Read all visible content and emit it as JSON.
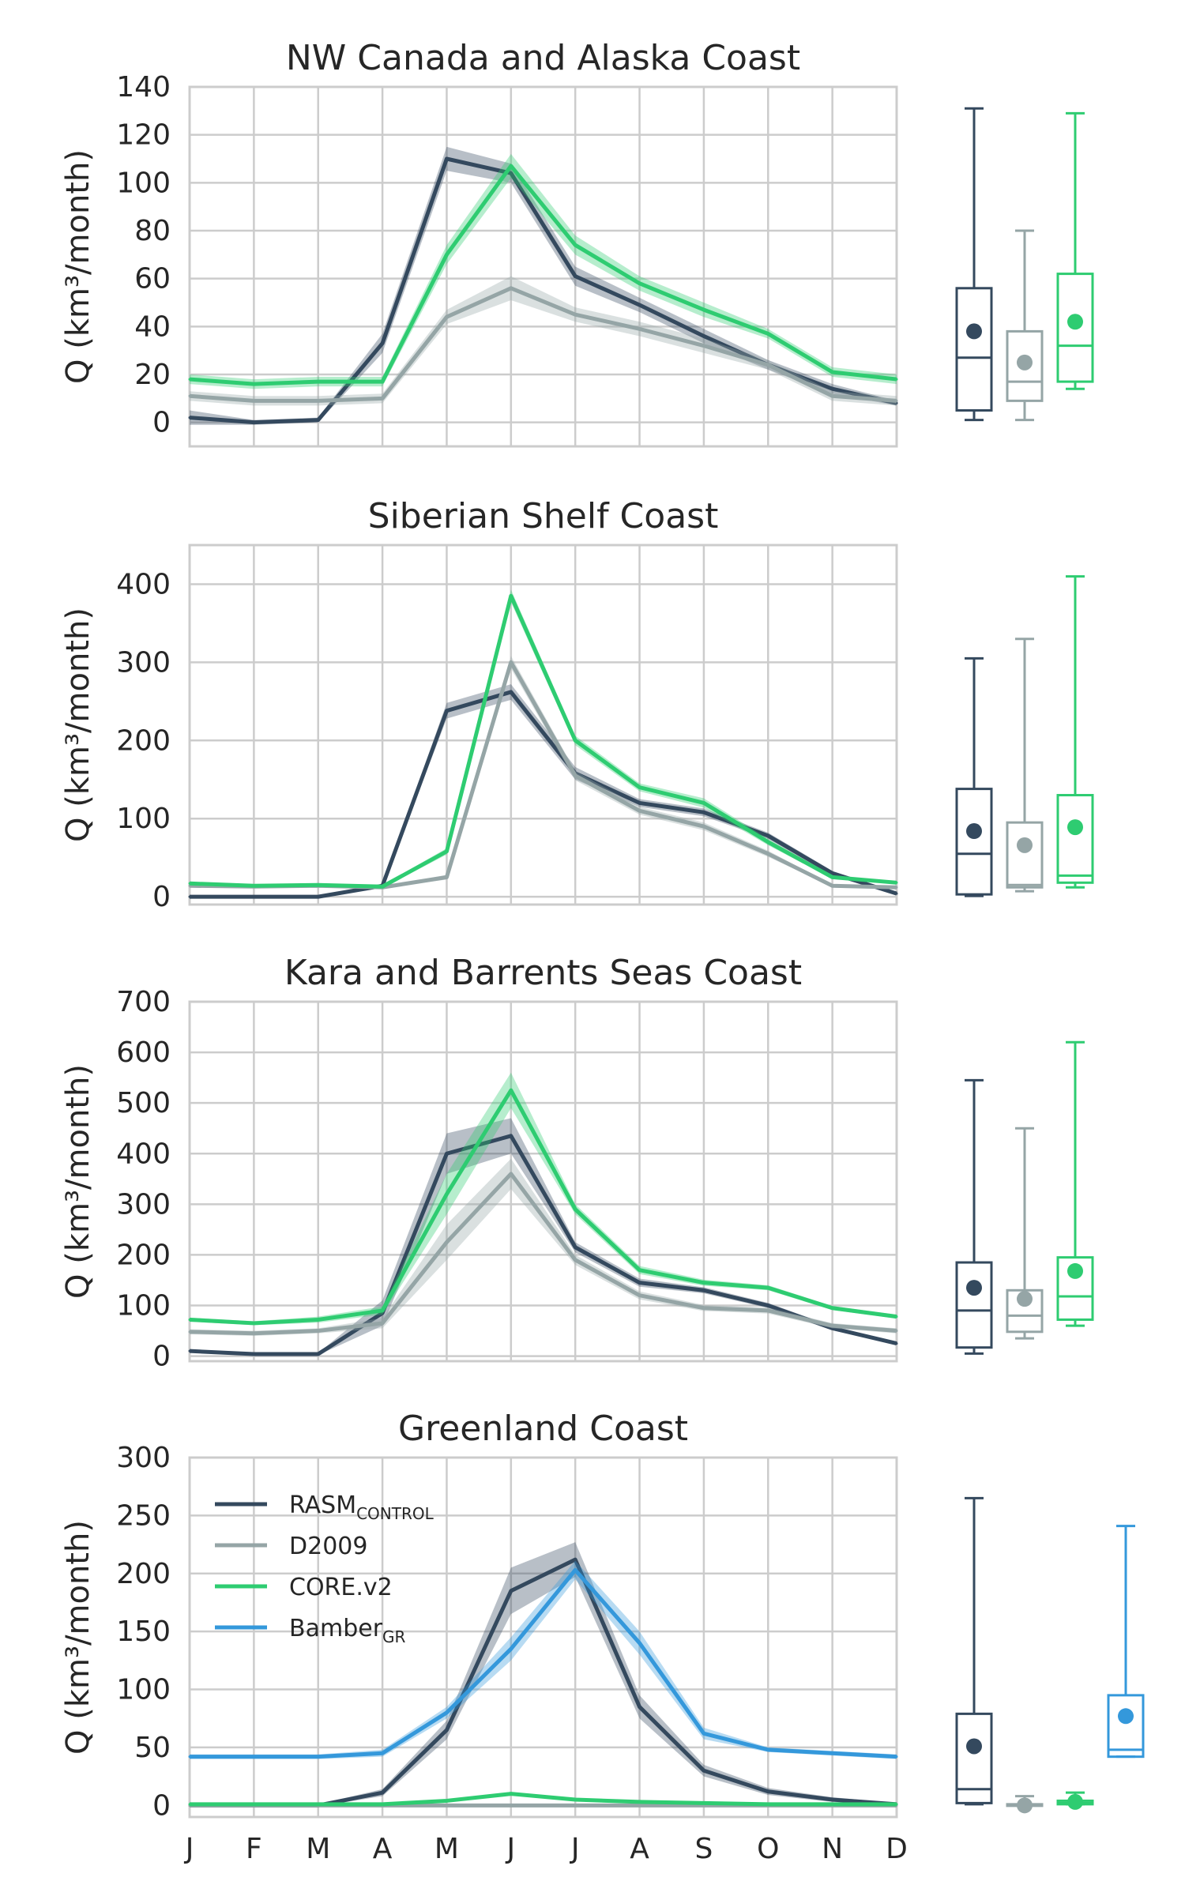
{
  "months": [
    "J",
    "F",
    "M",
    "A",
    "M",
    "J",
    "J",
    "A",
    "S",
    "O",
    "N",
    "D"
  ],
  "ylabel": "Q (km³/month)",
  "legend": [
    {
      "label": "RASM",
      "sub": "CONTROL",
      "color": "#34495e"
    },
    {
      "label": "D2009",
      "sub": "",
      "color": "#95a5a6"
    },
    {
      "label": "CORE.v2",
      "sub": "",
      "color": "#2ecc71"
    },
    {
      "label": "Bamber",
      "sub": "GR",
      "color": "#3498db"
    }
  ],
  "colors": {
    "RASM": "#34495e",
    "D2009": "#95a5a6",
    "CORE": "#2ecc71",
    "Bamber": "#3498db"
  },
  "chart_data": [
    {
      "type": "line",
      "title": "NW Canada and Alaska Coast",
      "ylim": [
        -10,
        140
      ],
      "yticks": [
        0,
        20,
        40,
        60,
        80,
        100,
        120,
        140
      ],
      "categories": [
        "J",
        "F",
        "M",
        "A",
        "M",
        "J",
        "J",
        "A",
        "S",
        "O",
        "N",
        "D"
      ],
      "series": [
        {
          "name": "RASM_CONTROL",
          "color": "#34495e",
          "values": [
            2,
            0,
            1,
            33,
            110,
            104,
            61,
            49,
            36,
            24,
            14,
            8
          ],
          "band": [
            3,
            1,
            1,
            4,
            5,
            4,
            4,
            3,
            3,
            2,
            2,
            1
          ]
        },
        {
          "name": "D2009",
          "color": "#95a5a6",
          "values": [
            11,
            9,
            9,
            10,
            44,
            56,
            45,
            39,
            32,
            24,
            11,
            9
          ],
          "band": [
            2,
            2,
            2,
            2,
            3,
            5,
            3,
            3,
            3,
            2,
            2,
            2
          ]
        },
        {
          "name": "CORE.v2",
          "color": "#2ecc71",
          "values": [
            18,
            16,
            17,
            17,
            70,
            107,
            74,
            58,
            47,
            37,
            21,
            18
          ],
          "band": [
            2,
            2,
            2,
            2,
            4,
            5,
            4,
            3,
            3,
            2,
            2,
            2
          ]
        }
      ],
      "boxes": [
        {
          "name": "RASM_CONTROL",
          "color": "#34495e",
          "min": 1,
          "q1": 5,
          "median": 27,
          "q3": 56,
          "max": 131,
          "mean": 38
        },
        {
          "name": "D2009",
          "color": "#95a5a6",
          "min": 1,
          "q1": 9,
          "median": 17,
          "q3": 38,
          "max": 80,
          "mean": 25
        },
        {
          "name": "CORE.v2",
          "color": "#2ecc71",
          "min": 14,
          "q1": 17,
          "median": 32,
          "q3": 62,
          "max": 129,
          "mean": 42
        }
      ]
    },
    {
      "type": "line",
      "title": "Siberian Shelf Coast",
      "ylim": [
        -10,
        450
      ],
      "yticks": [
        0,
        100,
        200,
        300,
        400
      ],
      "categories": [
        "J",
        "F",
        "M",
        "A",
        "M",
        "J",
        "J",
        "A",
        "S",
        "O",
        "N",
        "D"
      ],
      "series": [
        {
          "name": "RASM_CONTROL",
          "color": "#34495e",
          "values": [
            0,
            0,
            0,
            14,
            238,
            262,
            158,
            120,
            108,
            78,
            30,
            4
          ],
          "band": [
            1,
            1,
            1,
            2,
            10,
            10,
            8,
            5,
            5,
            4,
            3,
            1
          ]
        },
        {
          "name": "D2009",
          "color": "#95a5a6",
          "values": [
            14,
            13,
            14,
            12,
            25,
            300,
            155,
            110,
            90,
            55,
            14,
            12
          ],
          "band": [
            1,
            1,
            1,
            1,
            3,
            8,
            6,
            5,
            5,
            4,
            1,
            1
          ]
        },
        {
          "name": "CORE.v2",
          "color": "#2ecc71",
          "values": [
            17,
            14,
            15,
            13,
            58,
            385,
            200,
            140,
            120,
            70,
            25,
            18
          ],
          "band": [
            2,
            2,
            2,
            2,
            4,
            8,
            6,
            5,
            6,
            4,
            2,
            2
          ]
        }
      ],
      "boxes": [
        {
          "name": "RASM_CONTROL",
          "color": "#34495e",
          "min": 1,
          "q1": 3,
          "median": 55,
          "q3": 138,
          "max": 305,
          "mean": 84
        },
        {
          "name": "D2009",
          "color": "#95a5a6",
          "min": 7,
          "q1": 12,
          "median": 15,
          "q3": 95,
          "max": 330,
          "mean": 66
        },
        {
          "name": "CORE.v2",
          "color": "#2ecc71",
          "min": 12,
          "q1": 18,
          "median": 27,
          "q3": 130,
          "max": 410,
          "mean": 89
        }
      ]
    },
    {
      "type": "line",
      "title": "Kara and Barrents Seas Coast",
      "ylim": [
        -10,
        700
      ],
      "yticks": [
        0,
        100,
        200,
        300,
        400,
        500,
        600,
        700
      ],
      "categories": [
        "J",
        "F",
        "M",
        "A",
        "M",
        "J",
        "J",
        "A",
        "S",
        "O",
        "N",
        "D"
      ],
      "series": [
        {
          "name": "RASM_CONTROL",
          "color": "#34495e",
          "values": [
            10,
            4,
            4,
            85,
            400,
            435,
            215,
            145,
            130,
            100,
            55,
            25
          ],
          "band": [
            2,
            2,
            2,
            25,
            40,
            35,
            10,
            8,
            6,
            5,
            4,
            3
          ]
        },
        {
          "name": "D2009",
          "color": "#95a5a6",
          "values": [
            48,
            45,
            50,
            65,
            225,
            360,
            190,
            120,
            95,
            90,
            60,
            50
          ],
          "band": [
            5,
            5,
            5,
            10,
            35,
            30,
            10,
            8,
            6,
            6,
            5,
            5
          ]
        },
        {
          "name": "CORE.v2",
          "color": "#2ecc71",
          "values": [
            72,
            65,
            72,
            90,
            320,
            525,
            290,
            170,
            145,
            135,
            95,
            78
          ],
          "band": [
            4,
            4,
            6,
            8,
            40,
            35,
            10,
            8,
            6,
            5,
            4,
            4
          ]
        }
      ],
      "boxes": [
        {
          "name": "RASM_CONTROL",
          "color": "#34495e",
          "min": 5,
          "q1": 17,
          "median": 90,
          "q3": 185,
          "max": 545,
          "mean": 135
        },
        {
          "name": "D2009",
          "color": "#95a5a6",
          "min": 35,
          "q1": 48,
          "median": 80,
          "q3": 130,
          "max": 450,
          "mean": 113
        },
        {
          "name": "CORE.v2",
          "color": "#2ecc71",
          "min": 60,
          "q1": 72,
          "median": 118,
          "q3": 195,
          "max": 620,
          "mean": 168
        }
      ]
    },
    {
      "type": "line",
      "title": "Greenland Coast",
      "ylim": [
        -10,
        300
      ],
      "yticks": [
        0,
        50,
        100,
        150,
        200,
        250,
        300
      ],
      "categories": [
        "J",
        "F",
        "M",
        "A",
        "M",
        "J",
        "J",
        "A",
        "S",
        "O",
        "N",
        "D"
      ],
      "series": [
        {
          "name": "RASM_CONTROL",
          "color": "#34495e",
          "values": [
            0,
            0,
            0,
            11,
            65,
            185,
            212,
            85,
            30,
            12,
            5,
            1
          ],
          "band": [
            1,
            1,
            1,
            3,
            8,
            20,
            15,
            10,
            5,
            3,
            2,
            1
          ]
        },
        {
          "name": "D2009",
          "color": "#95a5a6",
          "values": [
            0,
            0,
            0,
            0,
            0,
            0,
            0,
            0,
            0,
            0,
            0,
            0
          ],
          "band": [
            0.5,
            0.5,
            0.5,
            0.5,
            0.5,
            0.5,
            0.5,
            0.5,
            0.5,
            0.5,
            0.5,
            0.5
          ]
        },
        {
          "name": "CORE.v2",
          "color": "#2ecc71",
          "values": [
            1,
            1,
            1,
            1,
            4,
            10,
            5,
            3,
            2,
            1,
            1,
            1
          ],
          "band": [
            1,
            1,
            1,
            1,
            1,
            1,
            1,
            1,
            1,
            1,
            1,
            1
          ]
        },
        {
          "name": "BamberGR",
          "color": "#3498db",
          "values": [
            42,
            42,
            42,
            45,
            80,
            135,
            203,
            140,
            62,
            48,
            45,
            42
          ],
          "band": [
            2,
            2,
            2,
            3,
            5,
            10,
            8,
            10,
            5,
            2,
            2,
            2
          ]
        }
      ],
      "boxes": [
        {
          "name": "RASM_CONTROL",
          "color": "#34495e",
          "min": 1,
          "q1": 2,
          "median": 14,
          "q3": 79,
          "max": 265,
          "mean": 51
        },
        {
          "name": "D2009",
          "color": "#95a5a6",
          "min": 0,
          "q1": 0,
          "median": 0,
          "q3": 1,
          "max": 8,
          "mean": 0
        },
        {
          "name": "CORE.v2",
          "color": "#2ecc71",
          "min": 1,
          "q1": 1,
          "median": 2,
          "q3": 4,
          "max": 11,
          "mean": 3
        },
        {
          "name": "BamberGR",
          "color": "#3498db",
          "min": 42,
          "q1": 42,
          "median": 48,
          "q3": 95,
          "max": 241,
          "mean": 77
        }
      ]
    }
  ]
}
